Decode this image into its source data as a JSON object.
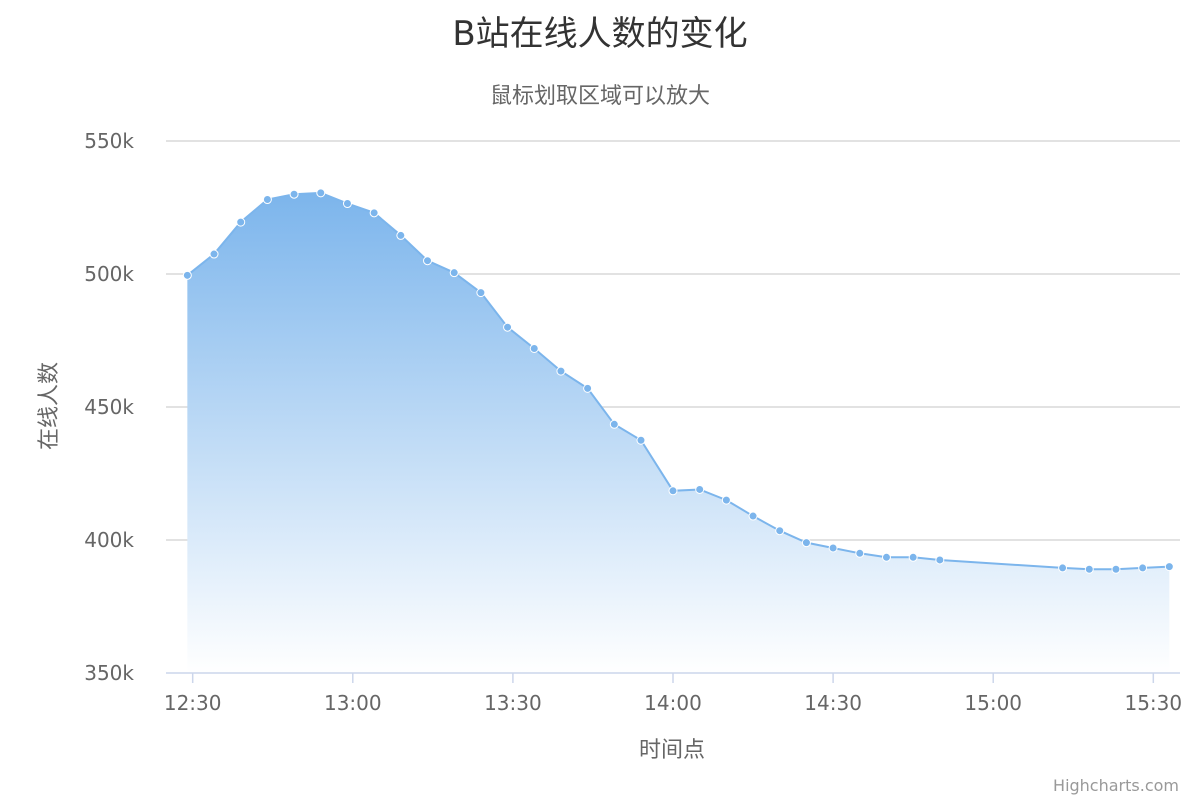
{
  "chart_data": {
    "type": "area",
    "title": "B站在线人数的变化",
    "subtitle": "鼠标划取区域可以放大",
    "xlabel": "时间点",
    "ylabel": "在线人数",
    "credits": "Highcharts.com",
    "x_tick_labels": [
      "12:30",
      "13:00",
      "13:30",
      "14:00",
      "14:30",
      "15:00",
      "15:30"
    ],
    "y_tick_labels": [
      "350k",
      "400k",
      "450k",
      "500k",
      "550k"
    ],
    "x_unit": "time (HH:MM)",
    "xlim": [
      "12:25",
      "15:35"
    ],
    "ylim": [
      350000,
      550000
    ],
    "y_ticks": [
      350000,
      400000,
      450000,
      500000,
      550000
    ],
    "x_ticks": [
      "12:30",
      "13:00",
      "13:30",
      "14:00",
      "14:30",
      "15:00",
      "15:30"
    ],
    "grid": true,
    "colors": {
      "series": "#7cb5ec",
      "grid": "#d9d9d9",
      "axis": "#ccd6eb",
      "fill_top": "#7cb5ec",
      "fill_bottom": "#ffffff"
    },
    "series": [
      {
        "x": [
          "12:29",
          "12:34",
          "12:39",
          "12:44",
          "12:49",
          "12:54",
          "12:59",
          "13:04",
          "13:09",
          "13:14",
          "13:19",
          "13:24",
          "13:29",
          "13:34",
          "13:39",
          "13:44",
          "13:49",
          "13:54",
          "14:00",
          "14:05",
          "14:10",
          "14:15",
          "14:20",
          "14:25",
          "14:30",
          "14:35",
          "14:40",
          "14:45",
          "14:50",
          "15:13",
          "15:18",
          "15:23",
          "15:28",
          "15:33"
        ],
        "y": [
          499500,
          507500,
          519500,
          528000,
          530000,
          530500,
          526500,
          523000,
          514500,
          505000,
          500500,
          493000,
          480000,
          472000,
          463500,
          457000,
          443500,
          437500,
          418500,
          419000,
          415000,
          409000,
          403500,
          399000,
          397000,
          395000,
          393500,
          393500,
          392500,
          389500,
          389000,
          389000,
          389500,
          390000
        ]
      }
    ]
  }
}
